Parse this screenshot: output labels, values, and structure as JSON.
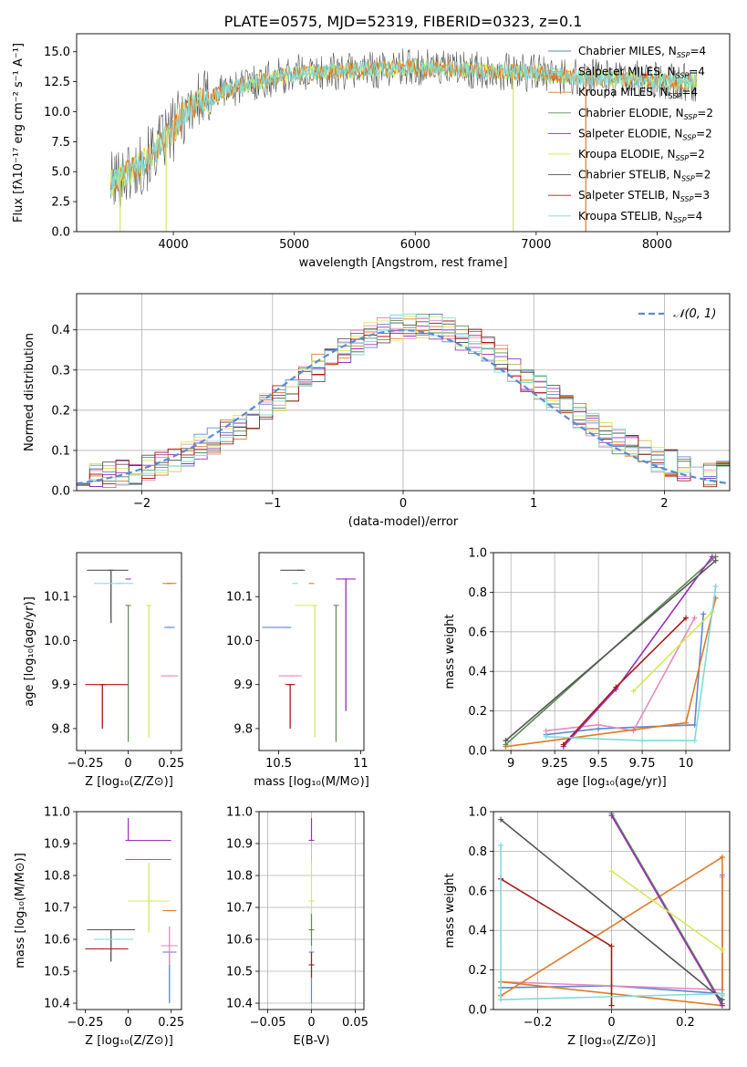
{
  "figure": {
    "title": "PLATE=0575, MJD=52319, FIBERID=0323, z=0.1"
  },
  "colors": {
    "Chabrier MILES": "#5d86d6",
    "Salpeter MILES": "#e58bbf",
    "Kroupa MILES": "#e07a27",
    "Chabrier ELODIE": "#5d8a56",
    "Salpeter ELODIE": "#9b30b8",
    "Kroupa ELODIE": "#d7e85b",
    "Chabrier STELIB": "#555555",
    "Salpeter STELIB": "#a81919",
    "Kroupa STELIB": "#7fdbd9",
    "normal": "#5b8ad6"
  },
  "chart_data": [
    {
      "id": "spectrum",
      "type": "line",
      "xlabel": "wavelength [Angstrom, rest frame]",
      "ylabel": "Flux [fλ10⁻¹⁷ erg cm⁻² s⁻¹ A⁻¹]",
      "xlim": [
        3200,
        8600
      ],
      "ylim": [
        0,
        16.5
      ],
      "xticks": [
        4000,
        5000,
        6000,
        7000,
        8000
      ],
      "yticks": [
        0.0,
        2.5,
        5.0,
        7.5,
        10.0,
        12.5,
        15.0
      ],
      "grid": false,
      "legend_position": "right",
      "legend": [
        "Chabrier MILES, N_SSP=4",
        "Salpeter MILES, N_SSP=4",
        "Kroupa MILES, N_SSP=4",
        "Chabrier ELODIE, N_SSP=2",
        "Salpeter ELODIE, N_SSP=2",
        "Kroupa ELODIE, N_SSP=2",
        "Chabrier STELIB, N_SSP=2",
        "Salpeter STELIB, N_SSP=3",
        "Kroupa STELIB, N_SSP=4"
      ],
      "continuum": {
        "x": [
          3480,
          3600,
          3700,
          3800,
          3900,
          4000,
          4100,
          4200,
          4300,
          4400,
          4600,
          4800,
          5000,
          5200,
          5400,
          5600,
          5800,
          6000,
          6200,
          6400,
          6600,
          6800,
          7000,
          7200,
          7400,
          7600,
          7800,
          8000,
          8200,
          8330
        ],
        "y": [
          4.0,
          4.8,
          5.3,
          6.2,
          7.4,
          8.5,
          10.2,
          10.8,
          11.0,
          11.7,
          12.3,
          12.7,
          13.2,
          13.3,
          13.4,
          13.5,
          13.6,
          13.8,
          13.6,
          13.5,
          13.4,
          13.3,
          13.2,
          13.0,
          12.8,
          12.8,
          12.7,
          12.6,
          12.5,
          12.4
        ]
      },
      "spikes": [
        {
          "x": 3560,
          "y_bottom": 0
        },
        {
          "x": 3940,
          "y_bottom": 0
        },
        {
          "x": 6810,
          "y_bottom": 0
        },
        {
          "x": 7410,
          "y_bottom": 0
        }
      ]
    },
    {
      "id": "residuals",
      "type": "histogram",
      "xlabel": "(data-model)/error",
      "ylabel": "Normed distribution",
      "xlim": [
        -2.5,
        2.5
      ],
      "ylim": [
        0,
        0.49
      ],
      "xticks": [
        -2,
        -1,
        0,
        1,
        2
      ],
      "yticks": [
        0.0,
        0.1,
        0.2,
        0.3,
        0.4
      ],
      "grid": true,
      "legend_position": "top-right",
      "legend": [
        "𝒩(0, 1)"
      ],
      "bin_width": 0.1,
      "bin_start": -2.5,
      "bins": 50
    },
    {
      "id": "age-vs-Z",
      "type": "errorbar",
      "xlabel": "Z [log₁₀(Z/Z⊙)]",
      "ylabel": "age  [log₁₀(age/yr)]",
      "xlim": [
        -0.3,
        0.31
      ],
      "ylim": [
        9.75,
        10.2
      ],
      "xticks": [
        -0.25,
        0.0,
        0.25
      ],
      "yticks": [
        9.8,
        9.9,
        10.0,
        10.1
      ],
      "grid": false,
      "points": [
        {
          "model": "Chabrier MILES",
          "x": 0.24,
          "y": 10.03,
          "xerr": [
            0.03,
            0.03
          ],
          "yerr": [
            0.0,
            0.0
          ]
        },
        {
          "model": "Salpeter MILES",
          "x": 0.24,
          "y": 9.92,
          "xerr": [
            0.05,
            0.05
          ],
          "yerr": [
            0.0,
            0.0
          ]
        },
        {
          "model": "Kroupa MILES",
          "x": 0.24,
          "y": 10.13,
          "xerr": [
            0.04,
            0.04
          ],
          "yerr": [
            0.0,
            0.0
          ]
        },
        {
          "model": "Chabrier ELODIE",
          "x": 0.0,
          "y": 10.08,
          "xerr": [
            0.0,
            0.0
          ],
          "yerr": [
            0.31,
            0.0
          ]
        },
        {
          "model": "Salpeter ELODIE",
          "x": 0.0,
          "y": 10.14,
          "xerr": [
            0.0,
            0.0
          ],
          "yerr": [
            0.0,
            0.0
          ]
        },
        {
          "model": "Kroupa ELODIE",
          "x": 0.12,
          "y": 10.08,
          "xerr": [
            0.0,
            0.0
          ],
          "yerr": [
            0.3,
            0.0
          ]
        },
        {
          "model": "Chabrier STELIB",
          "x": -0.1,
          "y": 10.16,
          "xerr": [
            0.14,
            0.1
          ],
          "yerr": [
            0.12,
            0.0
          ]
        },
        {
          "model": "Salpeter STELIB",
          "x": -0.15,
          "y": 9.9,
          "xerr": [
            0.1,
            0.15
          ],
          "yerr": [
            0.1,
            0.0
          ]
        },
        {
          "model": "Kroupa STELIB",
          "x": -0.05,
          "y": 10.13,
          "xerr": [
            0.15,
            0.08
          ],
          "yerr": [
            0.0,
            0.0
          ]
        }
      ]
    },
    {
      "id": "age-vs-mass",
      "type": "errorbar",
      "xlabel": "mass [log₁₀(M/M⊙)]",
      "ylabel": "",
      "xlim": [
        10.38,
        11.02
      ],
      "ylim": [
        9.75,
        10.2
      ],
      "xticks": [
        10.5,
        11.0
      ],
      "yticks": [
        9.8,
        9.9,
        10.0,
        10.1
      ],
      "grid": false,
      "points": [
        {
          "model": "Chabrier MILES",
          "x": 10.56,
          "y": 10.03,
          "xerr": [
            0.16,
            0.0
          ],
          "yerr": [
            0.0,
            0.0
          ]
        },
        {
          "model": "Salpeter MILES",
          "x": 10.58,
          "y": 9.92,
          "xerr": [
            0.08,
            0.06
          ],
          "yerr": [
            0.0,
            0.0
          ]
        },
        {
          "model": "Kroupa MILES",
          "x": 10.7,
          "y": 10.13,
          "xerr": [
            0.0,
            0.0
          ],
          "yerr": [
            0.0,
            0.0
          ]
        },
        {
          "model": "Chabrier ELODIE",
          "x": 10.85,
          "y": 10.08,
          "xerr": [
            0.0,
            0.0
          ],
          "yerr": [
            0.31,
            0.0
          ]
        },
        {
          "model": "Salpeter ELODIE",
          "x": 10.91,
          "y": 10.14,
          "xerr": [
            0.06,
            0.06
          ],
          "yerr": [
            0.3,
            0.0
          ]
        },
        {
          "model": "Kroupa ELODIE",
          "x": 10.72,
          "y": 10.08,
          "xerr": [
            0.12,
            0.0
          ],
          "yerr": [
            0.3,
            0.0
          ]
        },
        {
          "model": "Chabrier STELIB",
          "x": 10.63,
          "y": 10.16,
          "xerr": [
            0.12,
            0.03
          ],
          "yerr": [
            0.0,
            0.0
          ]
        },
        {
          "model": "Salpeter STELIB",
          "x": 10.57,
          "y": 9.9,
          "xerr": [
            0.03,
            0.03
          ],
          "yerr": [
            0.1,
            0.0
          ]
        },
        {
          "model": "Kroupa STELIB",
          "x": 10.6,
          "y": 10.13,
          "xerr": [
            0.0,
            0.0
          ],
          "yerr": [
            0.0,
            0.0
          ]
        }
      ]
    },
    {
      "id": "weight-vs-age",
      "type": "line",
      "xlabel": "age  [log₁₀(age/yr)]",
      "ylabel": "mass weight",
      "xlim": [
        8.9,
        10.25
      ],
      "ylim": [
        0,
        1.0
      ],
      "xticks": [
        9.0,
        9.25,
        9.5,
        9.75,
        10.0
      ],
      "yticks": [
        0.0,
        0.2,
        0.4,
        0.6,
        0.8,
        1.0
      ],
      "grid": true,
      "series": [
        {
          "model": "Chabrier MILES",
          "x": [
            9.2,
            9.5,
            10.05,
            10.1
          ],
          "y": [
            0.08,
            0.11,
            0.13,
            0.69
          ]
        },
        {
          "model": "Salpeter MILES",
          "x": [
            9.2,
            9.5,
            9.7,
            10.05
          ],
          "y": [
            0.1,
            0.13,
            0.1,
            0.67
          ]
        },
        {
          "model": "Kroupa MILES",
          "x": [
            8.97,
            10.0,
            10.17
          ],
          "y": [
            0.02,
            0.14,
            0.77
          ]
        },
        {
          "model": "Chabrier ELODIE",
          "x": [
            8.97,
            10.17
          ],
          "y": [
            0.03,
            0.98
          ]
        },
        {
          "model": "Salpeter ELODIE",
          "x": [
            9.3,
            9.6,
            10.15
          ],
          "y": [
            0.02,
            0.31,
            0.98
          ]
        },
        {
          "model": "Kroupa ELODIE",
          "x": [
            9.7,
            10.15
          ],
          "y": [
            0.3,
            0.7
          ]
        },
        {
          "model": "Chabrier STELIB",
          "x": [
            8.97,
            10.17
          ],
          "y": [
            0.05,
            0.96
          ]
        },
        {
          "model": "Salpeter STELIB",
          "x": [
            9.3,
            9.6,
            10.0
          ],
          "y": [
            0.03,
            0.32,
            0.67
          ]
        },
        {
          "model": "Kroupa STELIB",
          "x": [
            9.2,
            9.75,
            10.05,
            10.17
          ],
          "y": [
            0.07,
            0.05,
            0.05,
            0.83
          ]
        }
      ]
    },
    {
      "id": "mass-vs-Z",
      "type": "errorbar",
      "xlabel": "Z [log₁₀(Z/Z⊙)]",
      "ylabel": "mass [log₁₀(M/M⊙)]",
      "xlim": [
        -0.3,
        0.31
      ],
      "ylim": [
        10.38,
        11.0
      ],
      "xticks": [
        -0.25,
        0.0,
        0.25
      ],
      "yticks": [
        10.4,
        10.5,
        10.6,
        10.7,
        10.8,
        10.9,
        11.0
      ],
      "grid": false,
      "points": [
        {
          "model": "Chabrier MILES",
          "x": 0.24,
          "y": 10.56,
          "xerr": [
            0.04,
            0.04
          ],
          "yerr": [
            0.16,
            0.0
          ]
        },
        {
          "model": "Salpeter MILES",
          "x": 0.24,
          "y": 10.58,
          "xerr": [
            0.05,
            0.05
          ],
          "yerr": [
            0.06,
            0.06
          ]
        },
        {
          "model": "Kroupa MILES",
          "x": 0.24,
          "y": 10.69,
          "xerr": [
            0.04,
            0.04
          ],
          "yerr": [
            0.0,
            0.0
          ]
        },
        {
          "model": "Chabrier ELODIE",
          "x": 0.0,
          "y": 10.85,
          "xerr": [
            0.0,
            0.25
          ],
          "yerr": [
            0.0,
            0.0
          ]
        },
        {
          "model": "Salpeter ELODIE",
          "x": 0.0,
          "y": 10.91,
          "xerr": [
            0.0,
            0.25
          ],
          "yerr": [
            0.0,
            0.07
          ]
        },
        {
          "model": "Kroupa ELODIE",
          "x": 0.12,
          "y": 10.72,
          "xerr": [
            0.12,
            0.12
          ],
          "yerr": [
            0.1,
            0.12
          ]
        },
        {
          "model": "Chabrier STELIB",
          "x": -0.1,
          "y": 10.63,
          "xerr": [
            0.14,
            0.14
          ],
          "yerr": [
            0.1,
            0.0
          ]
        },
        {
          "model": "Salpeter STELIB",
          "x": -0.15,
          "y": 10.57,
          "xerr": [
            0.1,
            0.15
          ],
          "yerr": [
            0.0,
            0.0
          ]
        },
        {
          "model": "Kroupa STELIB",
          "x": -0.05,
          "y": 10.6,
          "xerr": [
            0.15,
            0.08
          ],
          "yerr": [
            0.0,
            0.0
          ]
        }
      ]
    },
    {
      "id": "mass-vs-ebv",
      "type": "errorbar",
      "xlabel": "E(B-V)",
      "ylabel": "",
      "xlim": [
        -0.06,
        0.06
      ],
      "ylim": [
        10.38,
        11.0
      ],
      "xticks": [
        -0.05,
        0.0,
        0.05
      ],
      "yticks": [
        10.4,
        10.5,
        10.6,
        10.7,
        10.8,
        10.9,
        11.0
      ],
      "grid": true,
      "points": [
        {
          "model": "Chabrier MILES",
          "x": 0.0,
          "y": 10.56,
          "xerr": [
            0.0,
            0.0
          ],
          "yerr": [
            0.16,
            0.0
          ]
        },
        {
          "model": "Salpeter ELODIE",
          "x": 0.0,
          "y": 10.91,
          "xerr": [
            0.0,
            0.0
          ],
          "yerr": [
            0.0,
            0.07
          ]
        },
        {
          "model": "Kroupa ELODIE",
          "x": 0.0,
          "y": 10.72,
          "xerr": [
            0.0,
            0.0
          ],
          "yerr": [
            0.1,
            0.12
          ]
        },
        {
          "model": "Chabrier ELODIE",
          "x": 0.0,
          "y": 10.63,
          "xerr": [
            0.0,
            0.0
          ],
          "yerr": [
            0.05,
            0.05
          ]
        },
        {
          "model": "Salpeter STELIB",
          "x": 0.0,
          "y": 10.52,
          "xerr": [
            0.0,
            0.0
          ],
          "yerr": [
            0.04,
            0.04
          ]
        }
      ]
    },
    {
      "id": "weight-vs-Z",
      "type": "line",
      "xlabel": "Z [log₁₀(Z/Z⊙)]",
      "ylabel": "mass weight",
      "xlim": [
        -0.32,
        0.32
      ],
      "ylim": [
        0,
        1.0
      ],
      "xticks": [
        -0.2,
        0.0,
        0.2
      ],
      "yticks": [
        0.0,
        0.2,
        0.4,
        0.6,
        0.8,
        1.0
      ],
      "grid": true,
      "series": [
        {
          "model": "Chabrier MILES",
          "x": [
            -0.3,
            0.0,
            0.3,
            0.3
          ],
          "y": [
            0.11,
            0.12,
            0.08,
            0.68
          ]
        },
        {
          "model": "Salpeter MILES",
          "x": [
            -0.3,
            0.0,
            0.3,
            0.3
          ],
          "y": [
            0.14,
            0.12,
            0.1,
            0.67
          ]
        },
        {
          "model": "Kroupa MILES",
          "x": [
            -0.3,
            0.3,
            0.3,
            -0.3
          ],
          "y": [
            0.07,
            0.77,
            0.02,
            0.14
          ]
        },
        {
          "model": "Chabrier ELODIE",
          "x": [
            0.0,
            0.3
          ],
          "y": [
            0.99,
            0.03
          ]
        },
        {
          "model": "Salpeter ELODIE",
          "x": [
            0.0,
            0.3
          ],
          "y": [
            0.98,
            0.02
          ]
        },
        {
          "model": "Kroupa ELODIE",
          "x": [
            0.0,
            0.3
          ],
          "y": [
            0.7,
            0.3
          ]
        },
        {
          "model": "Chabrier STELIB",
          "x": [
            -0.3,
            0.3
          ],
          "y": [
            0.96,
            0.05
          ]
        },
        {
          "model": "Salpeter STELIB",
          "x": [
            -0.3,
            0.0,
            0.0
          ],
          "y": [
            0.66,
            0.32,
            0.02
          ]
        },
        {
          "model": "Kroupa STELIB",
          "x": [
            -0.3,
            -0.3,
            0.3,
            0.3
          ],
          "y": [
            0.83,
            0.05,
            0.08,
            0.07
          ]
        }
      ]
    }
  ]
}
